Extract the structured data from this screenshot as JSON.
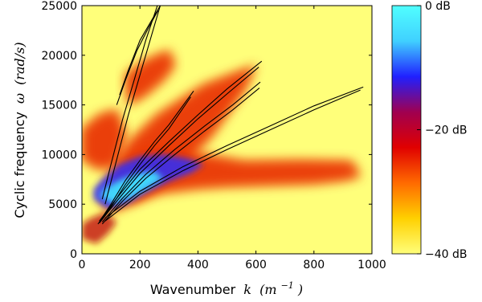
{
  "chart_data": {
    "type": "heatmap",
    "title": "",
    "xlabel": {
      "text": "Wavenumber",
      "var": "k",
      "unit": "(m",
      "unit_exp": "−1",
      "unit_close": ")"
    },
    "ylabel": {
      "text": "Cyclic frequency",
      "var": "ω",
      "unit": "(rad/s)"
    },
    "xlim": [
      0,
      1000
    ],
    "ylim": [
      0,
      25000
    ],
    "xticks": [
      0,
      200,
      400,
      600,
      800,
      1000
    ],
    "yticks": [
      0,
      5000,
      10000,
      15000,
      20000,
      25000
    ],
    "colorbar": {
      "range_db": [
        -40,
        0
      ],
      "ticks": [
        {
          "value": 0,
          "label": "0 dB"
        },
        {
          "value": -20,
          "label": "−20 dB"
        },
        {
          "value": -40,
          "label": "−40 dB"
        }
      ],
      "colors": [
        "#ffff7a",
        "#ffd000",
        "#ff6a00",
        "#e00000",
        "#a00050",
        "#2020ff",
        "#40d0ff",
        "#50ffff"
      ]
    },
    "background_color": "#ffff7a",
    "dispersion_curves": [
      {
        "x": [
          70,
          100,
          140,
          180,
          220,
          260,
          285
        ],
        "y": [
          5500,
          9000,
          13500,
          17500,
          21500,
          25000,
          27000
        ]
      },
      {
        "x": [
          80,
          120,
          160,
          200,
          240,
          275
        ],
        "y": [
          5000,
          9500,
          14000,
          18000,
          22000,
          25500
        ]
      },
      {
        "x": [
          130,
          160,
          200,
          240,
          280,
          300
        ],
        "y": [
          16000,
          18500,
          21500,
          23500,
          25500,
          26500
        ]
      },
      {
        "x": [
          120,
          150,
          190,
          230,
          262
        ],
        "y": [
          15000,
          17500,
          20500,
          22800,
          24500
        ]
      },
      {
        "x": [
          60,
          100,
          150,
          200,
          250,
          300,
          385
        ],
        "y": [
          3200,
          5000,
          7400,
          9400,
          11300,
          13000,
          16400
        ]
      },
      {
        "x": [
          55,
          100,
          150,
          200,
          250,
          300,
          375
        ],
        "y": [
          3000,
          4700,
          7000,
          9000,
          10900,
          12600,
          15800
        ]
      },
      {
        "x": [
          60,
          120,
          200,
          300,
          400,
          500,
          620
        ],
        "y": [
          3300,
          5600,
          8500,
          11300,
          14000,
          16600,
          19400
        ]
      },
      {
        "x": [
          60,
          120,
          200,
          300,
          400,
          500,
          610
        ],
        "y": [
          3100,
          5300,
          8100,
          10900,
          13600,
          16100,
          18800
        ]
      },
      {
        "x": [
          70,
          140,
          220,
          320,
          420,
          520,
          615
        ],
        "y": [
          3200,
          5600,
          8000,
          10500,
          12800,
          15000,
          17300
        ]
      },
      {
        "x": [
          70,
          140,
          220,
          320,
          420,
          520,
          612
        ],
        "y": [
          3000,
          5300,
          7600,
          10000,
          12300,
          14500,
          16700
        ]
      },
      {
        "x": [
          80,
          200,
          350,
          500,
          650,
          800,
          970
        ],
        "y": [
          3600,
          6300,
          8800,
          10900,
          12900,
          14900,
          16800
        ]
      },
      {
        "x": [
          80,
          200,
          350,
          500,
          650,
          800,
          960
        ],
        "y": [
          3300,
          6000,
          8400,
          10500,
          12500,
          14500,
          16500
        ]
      }
    ],
    "energy_regions": [
      {
        "kind": "red",
        "x": [
          100,
          200,
          320,
          450,
          560,
          600,
          420,
          260,
          170,
          110,
          60
        ],
        "y": [
          4200,
          5500,
          8000,
          12000,
          16500,
          19000,
          17000,
          14000,
          11500,
          9000,
          5500
        ]
      },
      {
        "kind": "red",
        "x": [
          150,
          280,
          400,
          500,
          600,
          700,
          800,
          900,
          960,
          930,
          760,
          560,
          380,
          250,
          160
        ],
        "y": [
          5200,
          6200,
          6600,
          6800,
          6900,
          7000,
          7100,
          7400,
          7800,
          9300,
          9400,
          9300,
          10200,
          10800,
          9500
        ]
      },
      {
        "kind": "red",
        "x": [
          160,
          220,
          280,
          320,
          300,
          220,
          150
        ],
        "y": [
          15000,
          16000,
          17500,
          19000,
          20500,
          19500,
          18000
        ]
      },
      {
        "kind": "red",
        "x": [
          0,
          60,
          120,
          150,
          120,
          60,
          0
        ],
        "y": [
          9500,
          8500,
          9000,
          12000,
          14500,
          14000,
          12500
        ]
      },
      {
        "kind": "blue",
        "x": [
          40,
          90,
          150,
          220,
          300,
          380,
          420,
          360,
          280,
          200,
          130,
          70,
          40
        ],
        "y": [
          5500,
          4500,
          5000,
          6200,
          7300,
          8200,
          9000,
          9600,
          10000,
          9800,
          9000,
          7500,
          6500
        ]
      },
      {
        "kind": "cyan",
        "x": [
          60,
          110,
          170,
          230,
          280,
          250,
          190,
          130,
          80
        ],
        "y": [
          5800,
          5000,
          5600,
          6600,
          7600,
          8300,
          8100,
          7400,
          6600
        ]
      },
      {
        "kind": "dark",
        "x": [
          0,
          50,
          90,
          120,
          80,
          30,
          0
        ],
        "y": [
          1500,
          1000,
          2000,
          3200,
          4200,
          3600,
          3000
        ]
      }
    ]
  }
}
